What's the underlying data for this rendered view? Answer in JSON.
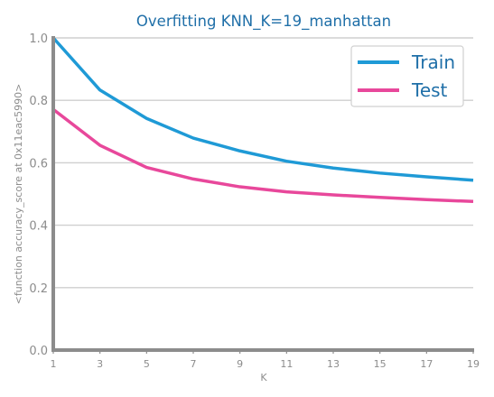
{
  "chart_data": {
    "type": "line",
    "title": "Overfitting KNN_K=19_manhattan",
    "xlabel": "K",
    "ylabel": "<function accuracy_score at 0x11eac5990>",
    "x": [
      1,
      3,
      5,
      7,
      9,
      11,
      13,
      15,
      17,
      19
    ],
    "xticks": [
      "1",
      "3",
      "5",
      "7",
      "9",
      "11",
      "13",
      "15",
      "17",
      "19"
    ],
    "yticks": [
      "0.0",
      "0.2",
      "0.4",
      "0.6",
      "0.8",
      "1.0"
    ],
    "xlim": [
      1,
      19
    ],
    "ylim": [
      0,
      1.0
    ],
    "grid": "horizontal",
    "legend_position": "top-right",
    "series": [
      {
        "name": "Train",
        "color": "#1f9ad6",
        "values": [
          1.0,
          0.833,
          0.742,
          0.679,
          0.638,
          0.605,
          0.583,
          0.567,
          0.555,
          0.544
        ]
      },
      {
        "name": "Test",
        "color": "#e8489b",
        "values": [
          0.771,
          0.656,
          0.585,
          0.548,
          0.523,
          0.507,
          0.497,
          0.489,
          0.482,
          0.476
        ]
      }
    ]
  }
}
